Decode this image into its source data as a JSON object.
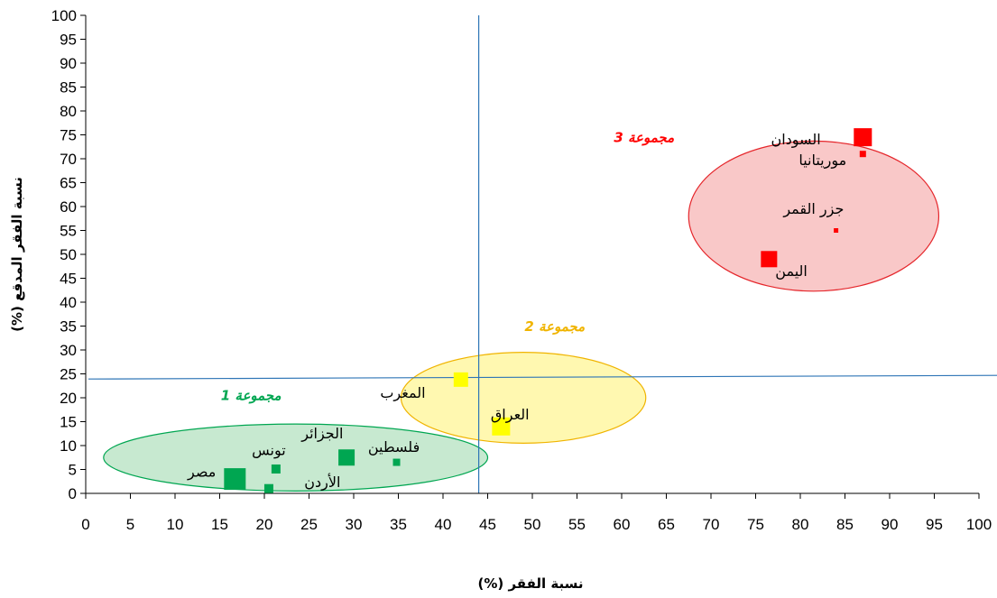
{
  "chart_data": {
    "type": "scatter",
    "title": "",
    "xlabel": "نسبة الفقر (%)",
    "ylabel": "نسبة الفقر المدقع (%)",
    "xlim": [
      0,
      100
    ],
    "ylim": [
      0,
      100
    ],
    "xticks": [
      "0",
      "5",
      "10",
      "15",
      "20",
      "25",
      "30",
      "35",
      "40",
      "45",
      "50",
      "55",
      "60",
      "65",
      "70",
      "75",
      "80",
      "85",
      "90",
      "95",
      "100"
    ],
    "yticks": [
      "0",
      "5",
      "10",
      "15",
      "20",
      "25",
      "30",
      "35",
      "40",
      "45",
      "50",
      "55",
      "60",
      "65",
      "70",
      "75",
      "80",
      "85",
      "90",
      "95",
      "100"
    ],
    "grid": false,
    "reference_lines": {
      "x": 44,
      "y": 24.3,
      "color": "#2E75B6"
    },
    "groups": [
      {
        "label": "مجموعة 1",
        "color": "#00A651",
        "fill": "#C7E9D0",
        "edge": "#00A651",
        "center": [
          23.5,
          7.5
        ],
        "radius": [
          21.5,
          7.0
        ],
        "label_at": [
          18.5,
          19.5
        ]
      },
      {
        "label": "مجموعة 2",
        "color": "#F0B400",
        "fill": "#FFF8B0",
        "edge": "#F0B400",
        "center": [
          49.0,
          20.0
        ],
        "radius": [
          13.7,
          9.5
        ],
        "label_at": [
          52.5,
          34.0
        ]
      },
      {
        "label": "مجموعة 3",
        "color": "#FF0000",
        "fill": "#F9C8C8",
        "edge": "#E5262B",
        "center": [
          81.5,
          58.0
        ],
        "radius": [
          14.0,
          15.7
        ],
        "label_at": [
          62.5,
          73.5
        ]
      }
    ],
    "points": [
      {
        "name": "مصر",
        "x": 16.7,
        "y": 3.0,
        "size": 24,
        "color": "#00A651",
        "label_at": [
          13.0,
          3.5
        ]
      },
      {
        "name": "الأردن",
        "x": 20.5,
        "y": 1.0,
        "size": 10,
        "color": "#00A651",
        "label_at": [
          26.5,
          1.3
        ]
      },
      {
        "name": "تونس",
        "x": 21.3,
        "y": 5.1,
        "size": 10,
        "color": "#00A651",
        "label_at": [
          20.5,
          8.0
        ]
      },
      {
        "name": "الجزائر",
        "x": 29.2,
        "y": 7.5,
        "size": 18,
        "color": "#00A651",
        "label_at": [
          26.5,
          11.5
        ]
      },
      {
        "name": "فلسطين",
        "x": 34.8,
        "y": 6.5,
        "size": 8,
        "color": "#00A651",
        "label_at": [
          34.5,
          8.7
        ]
      },
      {
        "name": "المغرب",
        "x": 42.0,
        "y": 23.8,
        "size": 16,
        "color": "#FFFF00",
        "label_at": [
          35.5,
          20.0
        ]
      },
      {
        "name": "العراق",
        "x": 46.5,
        "y": 14.0,
        "size": 20,
        "color": "#FFFF00",
        "label_at": [
          47.5,
          15.5
        ]
      },
      {
        "name": "السودان",
        "x": 87.0,
        "y": 74.5,
        "size": 20,
        "color": "#FF0000",
        "label_at": [
          79.5,
          73.0
        ]
      },
      {
        "name": "موريتانيا",
        "x": 87.0,
        "y": 71.0,
        "size": 7,
        "color": "#FF0000",
        "label_at": [
          82.5,
          68.7
        ]
      },
      {
        "name": "جزر القمر",
        "x": 84.0,
        "y": 55.0,
        "size": 5,
        "color": "#FF0000",
        "label_at": [
          81.5,
          58.5
        ]
      },
      {
        "name": "اليمن",
        "x": 76.5,
        "y": 49.0,
        "size": 18,
        "color": "#FF0000",
        "label_at": [
          79.0,
          45.5
        ]
      }
    ]
  }
}
